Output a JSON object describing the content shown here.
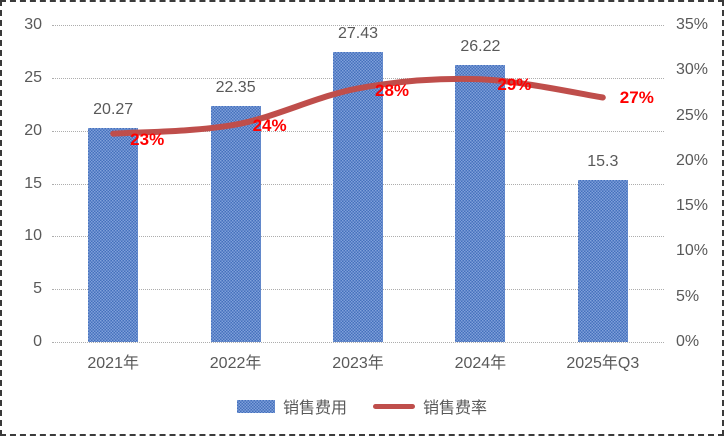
{
  "colors": {
    "bar_fill_dark": "#4470BC",
    "bar_fill_light": "#7FA0DA",
    "line": "#BF4E4B",
    "point_label": "#FF0000",
    "text": "#595959",
    "gridline": "#ADADAD",
    "border": "#3a3a3a",
    "background": "#FFFFFF"
  },
  "chart_data": {
    "type": "combo",
    "categories": [
      "2021年",
      "2022年",
      "2023年",
      "2024年",
      "2025年Q3"
    ],
    "series": [
      {
        "name": "销售费用",
        "type": "bar",
        "axis": "left",
        "values": [
          20.27,
          22.35,
          27.43,
          26.22,
          15.3
        ],
        "labels": [
          "20.27",
          "22.35",
          "27.43",
          "26.22",
          "15.3"
        ]
      },
      {
        "name": "销售费率",
        "type": "line",
        "axis": "right",
        "values": [
          23,
          24,
          28,
          29,
          27
        ],
        "labels": [
          "23%",
          "24%",
          "28%",
          "29%",
          "27%"
        ],
        "smooth": true
      }
    ],
    "axes": {
      "left": {
        "min": 0,
        "max": 30,
        "ticks": [
          "30",
          "25",
          "20",
          "15",
          "10",
          "5",
          "0"
        ]
      },
      "right": {
        "min": 0,
        "max": 35,
        "ticks": [
          "35%",
          "30%",
          "25%",
          "20%",
          "15%",
          "10%",
          "5%",
          "0%"
        ]
      }
    },
    "grid": true,
    "legend": {
      "position": "bottom",
      "entries": [
        "销售费用",
        "销售费率"
      ]
    },
    "title": "",
    "xlabel": "",
    "ylabel": ""
  }
}
